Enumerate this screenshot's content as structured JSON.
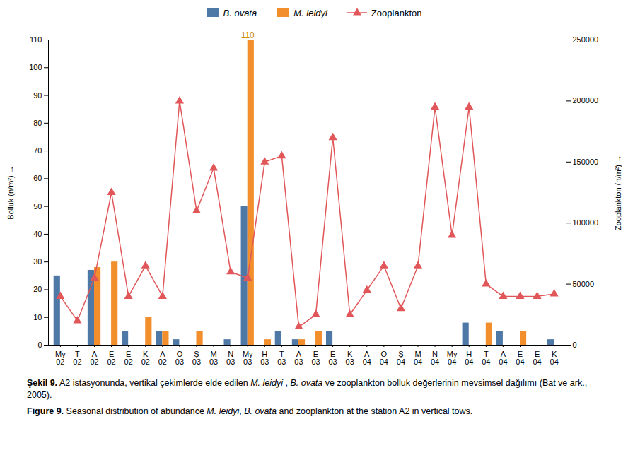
{
  "chart_data": {
    "type": "bar",
    "categories": [
      "My\n02",
      "T\n02",
      "A\n02",
      "E\n02",
      "E\n02",
      "K\n02",
      "A\n02",
      "O\n03",
      "Ş\n03",
      "M\n03",
      "N\n03",
      "My\n03",
      "H\n03",
      "T\n03",
      "A\n03",
      "E\n03",
      "E\n03",
      "K\n03",
      "A\n04",
      "O\n04",
      "Ş\n04",
      "M\n04",
      "N\n04",
      "My\n04",
      "H\n04",
      "T\n04",
      "A\n04",
      "E\n04",
      "E\n04",
      "K\n04"
    ],
    "series": [
      {
        "name": "B. ovata",
        "type": "bar",
        "values": [
          25,
          0,
          27,
          0,
          5,
          0,
          5,
          2,
          0,
          0,
          2,
          50,
          0,
          5,
          2,
          0,
          5,
          0,
          0,
          0,
          0,
          0,
          0,
          0,
          8,
          0,
          5,
          0,
          0,
          2
        ]
      },
      {
        "name": "M. leidyi",
        "type": "bar",
        "values": [
          0,
          0,
          28,
          30,
          0,
          10,
          5,
          0,
          5,
          0,
          0,
          110,
          2,
          0,
          2,
          5,
          0,
          0,
          0,
          0,
          0,
          0,
          0,
          0,
          0,
          8,
          0,
          5,
          0,
          0
        ]
      },
      {
        "name": "Zooplankton",
        "type": "line",
        "marker": "triangle",
        "axis": "y2",
        "values": [
          40000,
          20000,
          55000,
          125000,
          40000,
          65000,
          40000,
          200000,
          110000,
          145000,
          60000,
          55000,
          150000,
          155000,
          15000,
          25000,
          170000,
          25000,
          45000,
          65000,
          30000,
          65000,
          195000,
          90000,
          195000,
          50000,
          40000,
          40000,
          40000,
          42000
        ]
      }
    ],
    "ylabel": "Bolluk (n/m²)",
    "y2label": "Zooplankton (n/m²)",
    "ylim": [
      0,
      110
    ],
    "yticks": [
      0,
      10,
      20,
      30,
      40,
      50,
      60,
      70,
      80,
      90,
      100,
      110
    ],
    "y2lim": [
      0,
      250000
    ],
    "y2ticks": [
      0,
      50000,
      100000,
      150000,
      200000,
      250000
    ],
    "grid": false,
    "legend": "top",
    "annotations": [
      {
        "text": "110",
        "x": 11,
        "y": 110,
        "color": "#cc8800"
      }
    ],
    "caption": [
      "Şekil 9. A2 istasyonunda, vertikal çekimlerde elde edilen M. leidyi , B. ovata ve zooplankton bolluk değerlerinin mevsimsel dağılımı (Bat ve ark., 2005).",
      "Figure 9. Seasonal distribution of abundance M. leidyi, B. ovata and zooplankton at the station A2 in vertical tows."
    ]
  }
}
